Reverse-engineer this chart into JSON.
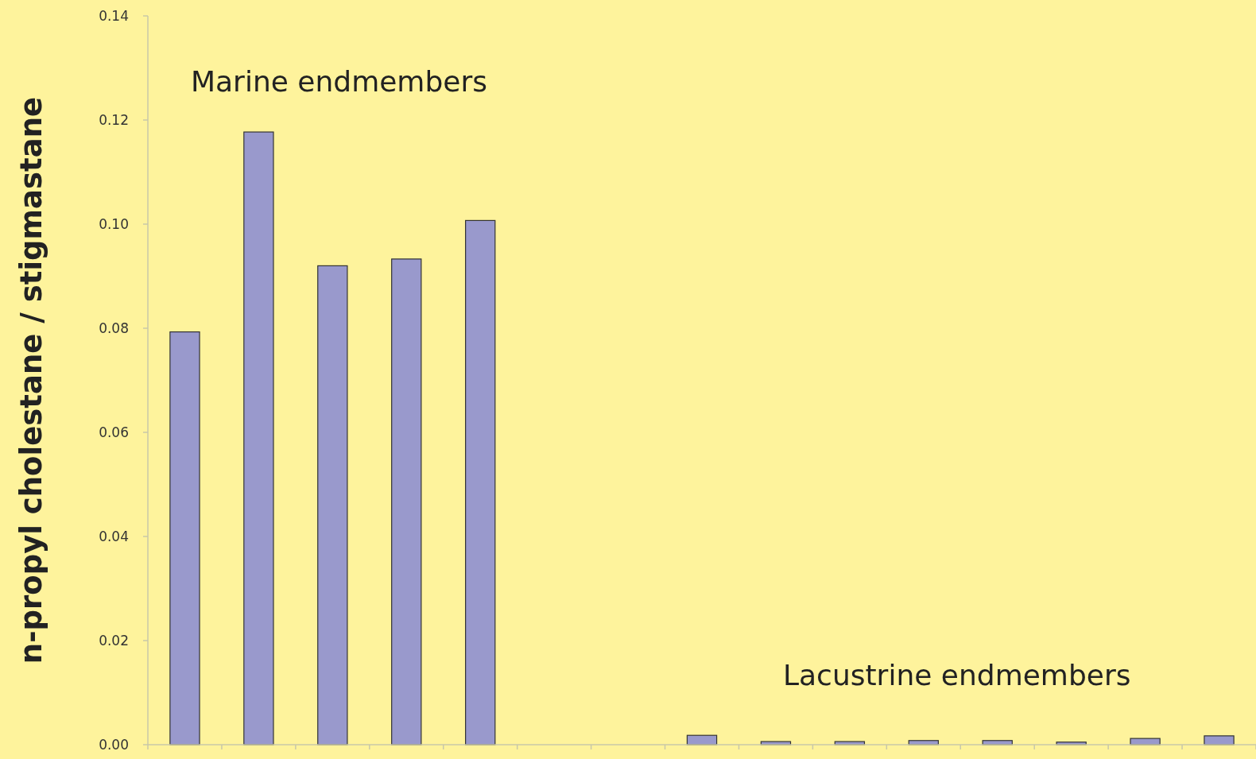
{
  "chart_data": {
    "type": "bar",
    "ylabel": "n-propyl cholestane / stigmastane",
    "categories": [
      null,
      null,
      null,
      null,
      null,
      null,
      null,
      null,
      null,
      null,
      null,
      null,
      null,
      null,
      null
    ],
    "values": [
      0.0793,
      0.1177,
      0.092,
      0.0933,
      0.1007,
      null,
      null,
      0.0018,
      0.0006,
      0.0006,
      0.0008,
      0.0008,
      0.0005,
      0.0012,
      0.0017
    ],
    "color": "#9999cc",
    "ylim": [
      0,
      0.14
    ],
    "yticks": [
      {
        "value": 0,
        "label": "0.00"
      },
      {
        "value": 0.02,
        "label": "0.02"
      },
      {
        "value": 0.04,
        "label": "0.04"
      },
      {
        "value": 0.06,
        "label": "0.06"
      },
      {
        "value": 0.08,
        "label": "0.08"
      },
      {
        "value": 0.1,
        "label": "0.10"
      },
      {
        "value": 0.12,
        "label": "0.12"
      },
      {
        "value": 0.14,
        "label": "0.14"
      }
    ],
    "annotations": [
      "Marine endmembers",
      "Lacustrine endmembers"
    ],
    "grid": false
  }
}
